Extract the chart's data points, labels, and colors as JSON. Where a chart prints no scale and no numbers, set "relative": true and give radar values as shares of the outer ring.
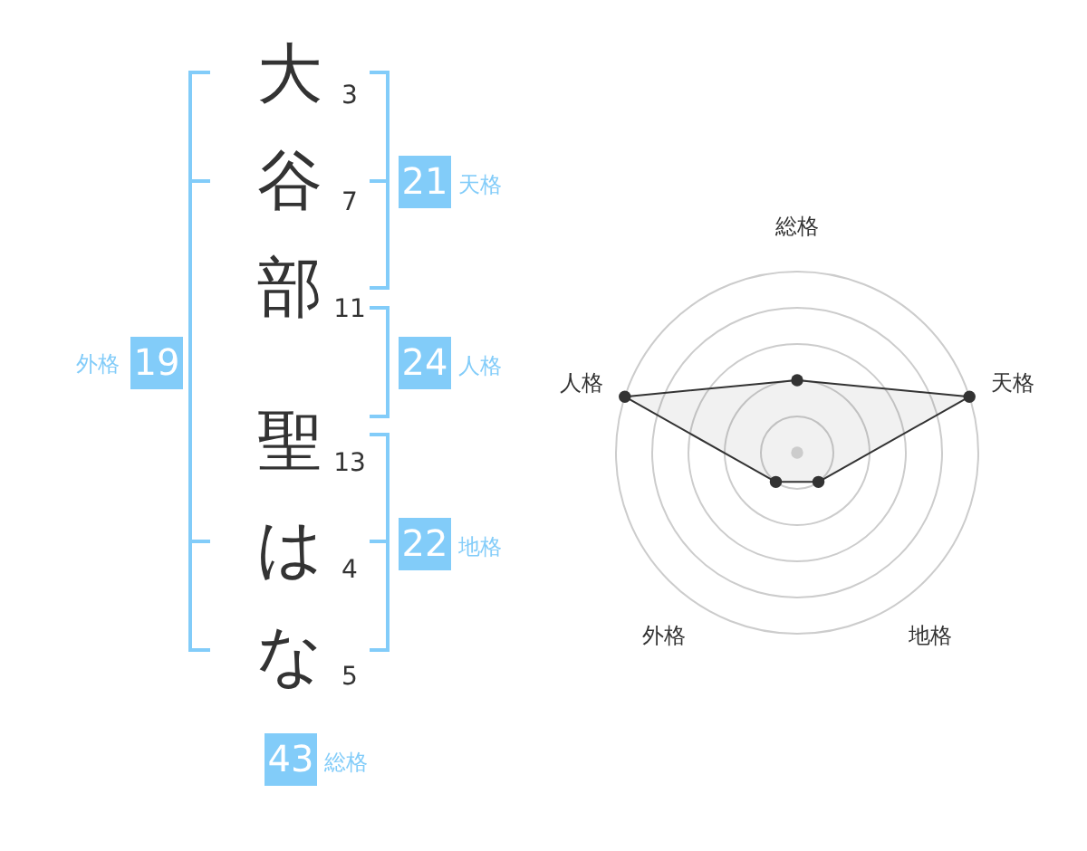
{
  "chart_data": [
    {
      "type": "other",
      "categories": [
        "大",
        "谷",
        "部",
        "聖",
        "は",
        "な"
      ],
      "values": [
        3,
        7,
        11,
        13,
        4,
        5
      ],
      "data_labels": true
    },
    {
      "type": "other",
      "categories": [
        "天格",
        "人格",
        "地格",
        "外格",
        "総格"
      ],
      "values": [
        21,
        24,
        22,
        19,
        43
      ],
      "data_labels": true,
      "color": "#82ccf9"
    },
    {
      "type": "radar",
      "categories": [
        "総格",
        "天格",
        "地格",
        "外格",
        "人格"
      ],
      "relative": true,
      "grid": true,
      "marker": "circle",
      "series": [
        {
          "color": "#333333",
          "values": [
            0.4,
            1,
            0.2,
            0.2,
            1
          ]
        }
      ]
    }
  ]
}
